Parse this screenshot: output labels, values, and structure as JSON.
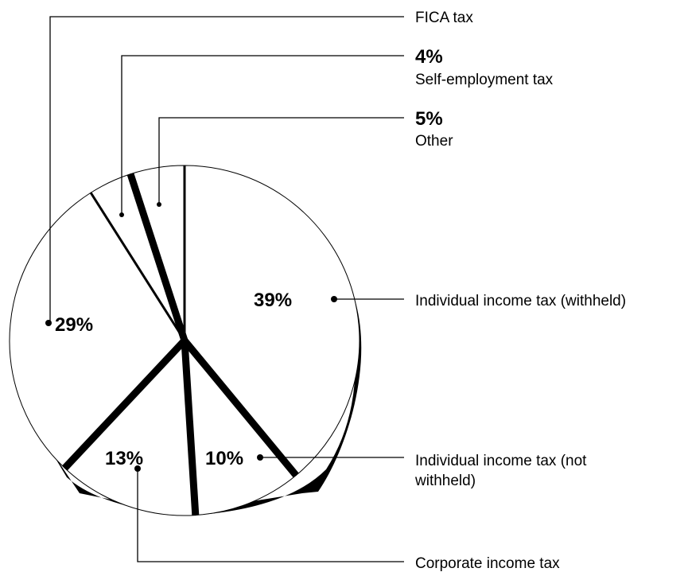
{
  "chart_data": {
    "type": "pie",
    "title": "",
    "slices": [
      {
        "label": "Individual income tax (withheld)",
        "value": 39,
        "value_label": "39%"
      },
      {
        "label": "Individual income tax (not withheld)",
        "value": 10,
        "value_label": "10%"
      },
      {
        "label": "Corporate income tax",
        "value": 13,
        "value_label": "13%"
      },
      {
        "label": "FICA tax",
        "value": 29,
        "value_label": "29%"
      },
      {
        "label": "Self-employment tax",
        "value": 4,
        "value_label": "4%"
      },
      {
        "label": "Other",
        "value": 5,
        "value_label": "5%"
      }
    ]
  },
  "labels": {
    "withheld_pct": "39%",
    "withheld_name": "Individual income tax (withheld)",
    "not_withheld_pct": "10%",
    "not_withheld_name_line1": "Individual income tax (not",
    "not_withheld_name_line2": "withheld)",
    "corporate_pct": "13%",
    "corporate_name": "Corporate income tax",
    "fica_pct": "29%",
    "fica_name": "FICA tax",
    "self_emp_pct": "4%",
    "self_emp_name": "Self-employment tax",
    "other_pct": "5%",
    "other_name": "Other"
  },
  "colors": {
    "fill": "#ffffff",
    "stroke": "#000000",
    "shadow": "#000000"
  }
}
